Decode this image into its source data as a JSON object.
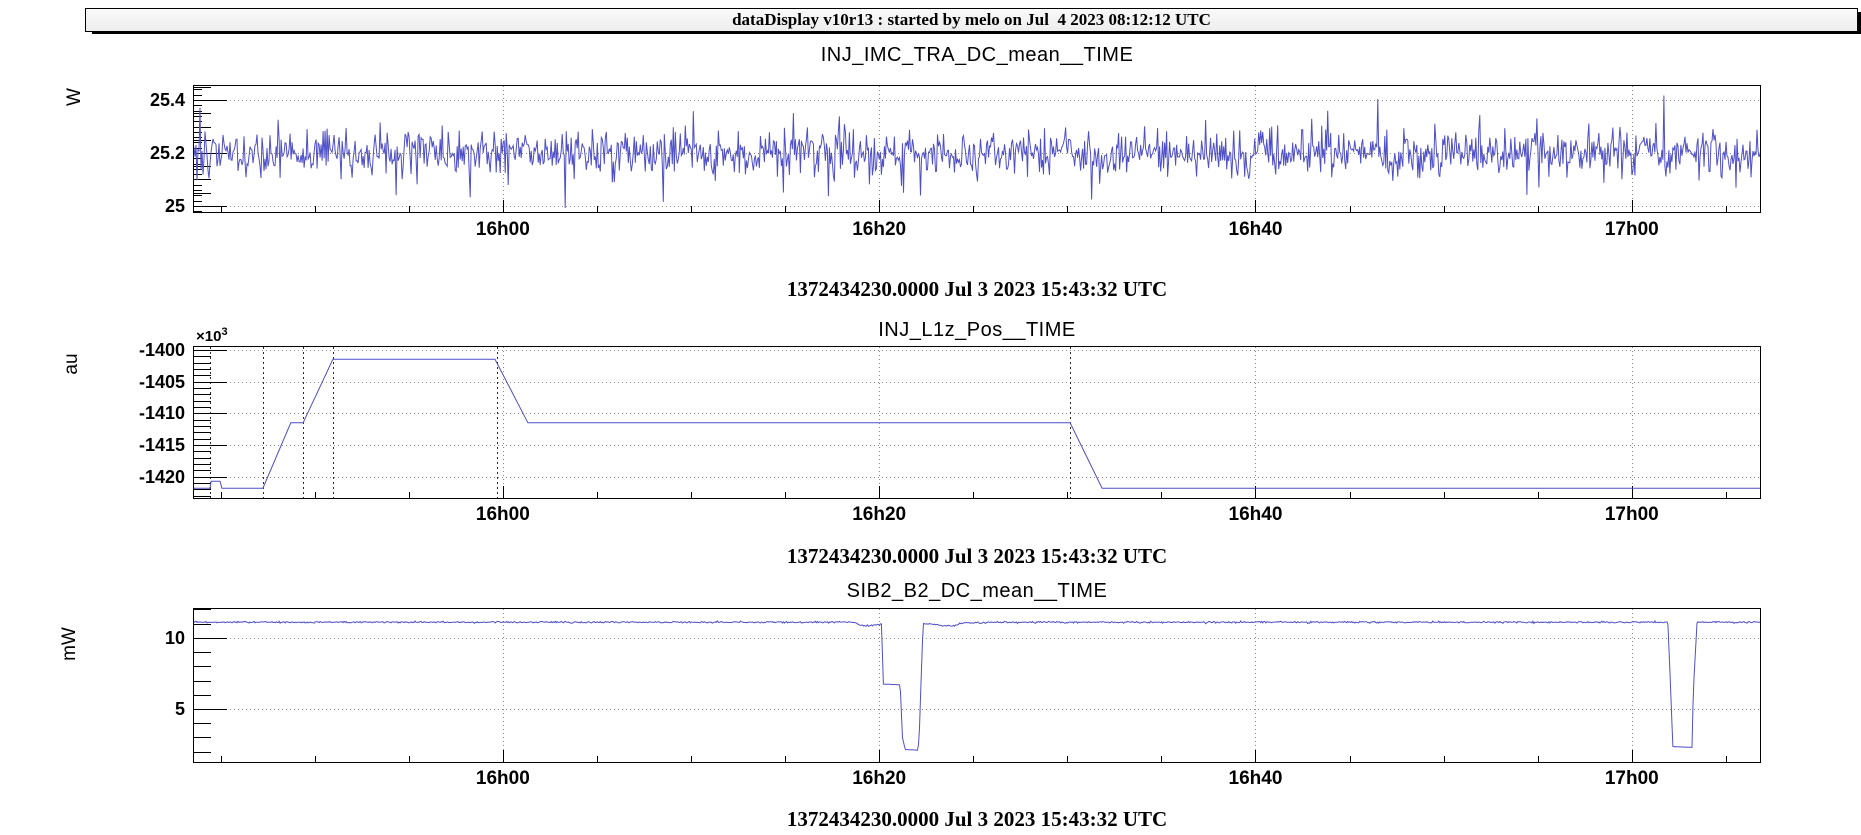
{
  "header": {
    "title": "dataDisplay v10r13 : started by melo on Jul  4 2023 08:12:12 UTC"
  },
  "style": {
    "accent_color": "#4f4fc8",
    "grid_color": "#8c8c8c",
    "marker_color": "#2a2a2a",
    "pave_fill": "#f4f4f4"
  },
  "chart_data": [
    {
      "type": "line",
      "title": "INJ_IMC_TRA_DC_mean__TIME",
      "ylabel": "W",
      "footer": "1372434230.0000 Jul 3 2023 15:43:32 UTC",
      "x_start": "15:43:32 UTC",
      "x_span_s": 5000,
      "x_ticks": [
        {
          "t": 988,
          "label": "16h00"
        },
        {
          "t": 2188,
          "label": "16h20"
        },
        {
          "t": 3388,
          "label": "16h40"
        },
        {
          "t": 4588,
          "label": "17h00"
        }
      ],
      "x_minor_start_s": 88,
      "x_minor_step_s": 300,
      "ylim": [
        24.973,
        25.457
      ],
      "y_ticks": [
        {
          "v": 25,
          "label": "25"
        },
        {
          "v": 25.2,
          "label": "25.2"
        },
        {
          "v": 25.4,
          "label": "25.4"
        }
      ],
      "y_minor_step": 0.05,
      "y_fine_step": 0.02,
      "grid": true,
      "series": {
        "kind": "noise",
        "mean": 25.2,
        "sd": 0.042,
        "n": 1568,
        "seed": 20230704,
        "spike_down_prob": 0.01,
        "spike_up_prob": 0.005,
        "spike_mag": 0.16,
        "clip_low": 24.985,
        "clip_high": 25.425
      }
    },
    {
      "type": "line",
      "title": "INJ_L1z_Pos__TIME",
      "ylabel": "au",
      "y_scale_mant": "×10",
      "y_scale_exp": "3",
      "footer": "1372434230.0000 Jul 3 2023 15:43:32 UTC",
      "x_start": "15:43:32 UTC",
      "x_span_s": 5000,
      "x_ticks": [
        {
          "t": 988,
          "label": "16h00"
        },
        {
          "t": 2188,
          "label": "16h20"
        },
        {
          "t": 3388,
          "label": "16h40"
        },
        {
          "t": 4588,
          "label": "17h00"
        }
      ],
      "x_minor_start_s": 88,
      "x_minor_step_s": 300,
      "ylim": [
        -1423.5,
        -1399.4
      ],
      "y_ticks": [
        {
          "v": -1400,
          "label": "-1400"
        },
        {
          "v": -1405,
          "label": "-1405"
        },
        {
          "v": -1410,
          "label": "-1410"
        },
        {
          "v": -1415,
          "label": "-1415"
        },
        {
          "v": -1420,
          "label": "-1420"
        }
      ],
      "y_minor_step": 1,
      "grid": true,
      "markers_t": [
        54,
        223,
        351,
        446,
        969,
        2797
      ],
      "series": {
        "kind": "polyline",
        "points": [
          [
            0,
            -1421.8
          ],
          [
            54,
            -1421.8
          ],
          [
            58,
            -1420.7
          ],
          [
            86,
            -1420.7
          ],
          [
            92,
            -1421.8
          ],
          [
            223,
            -1421.8
          ],
          [
            312,
            -1411.5
          ],
          [
            351,
            -1411.5
          ],
          [
            446,
            -1401.5
          ],
          [
            963,
            -1401.5
          ],
          [
            1068,
            -1411.5
          ],
          [
            2797,
            -1411.5
          ],
          [
            2899,
            -1421.8
          ],
          [
            5000,
            -1421.8
          ]
        ]
      }
    },
    {
      "type": "line",
      "title": "SIB2_B2_DC_mean__TIME",
      "ylabel": "mW",
      "footer": "1372434230.0000 Jul 3 2023 15:43:32 UTC",
      "x_start": "15:43:32 UTC",
      "x_span_s": 5000,
      "x_ticks": [
        {
          "t": 988,
          "label": "16h00"
        },
        {
          "t": 2188,
          "label": "16h20"
        },
        {
          "t": 3388,
          "label": "16h40"
        },
        {
          "t": 4588,
          "label": "17h00"
        }
      ],
      "x_minor_start_s": 88,
      "x_minor_step_s": 300,
      "ylim": [
        1.2,
        12.1
      ],
      "y_ticks": [
        {
          "v": 5,
          "label": "5"
        },
        {
          "v": 10,
          "label": "10"
        }
      ],
      "y_minor_step": 1,
      "grid": true,
      "series": {
        "kind": "polyline",
        "noise_sd": 0.03,
        "noise_above": 10.4,
        "seed": 99,
        "points": [
          [
            0,
            11.1
          ],
          [
            2105,
            11.1
          ],
          [
            2140,
            10.82
          ],
          [
            2191,
            10.95
          ],
          [
            2197,
            11.02
          ],
          [
            2200,
            6.75
          ],
          [
            2255,
            6.7
          ],
          [
            2262,
            3.0
          ],
          [
            2271,
            2.15
          ],
          [
            2312,
            2.1
          ],
          [
            2316,
            3.3
          ],
          [
            2320,
            6.0
          ],
          [
            2328,
            11.0
          ],
          [
            2366,
            10.95
          ],
          [
            2390,
            10.85
          ],
          [
            2430,
            10.85
          ],
          [
            2452,
            11.05
          ],
          [
            2600,
            11.1
          ],
          [
            4703,
            11.1
          ],
          [
            4710,
            7.5
          ],
          [
            4719,
            2.35
          ],
          [
            4780,
            2.3
          ],
          [
            4784,
            6.3
          ],
          [
            4796,
            11.1
          ],
          [
            5000,
            11.1
          ]
        ]
      }
    }
  ]
}
